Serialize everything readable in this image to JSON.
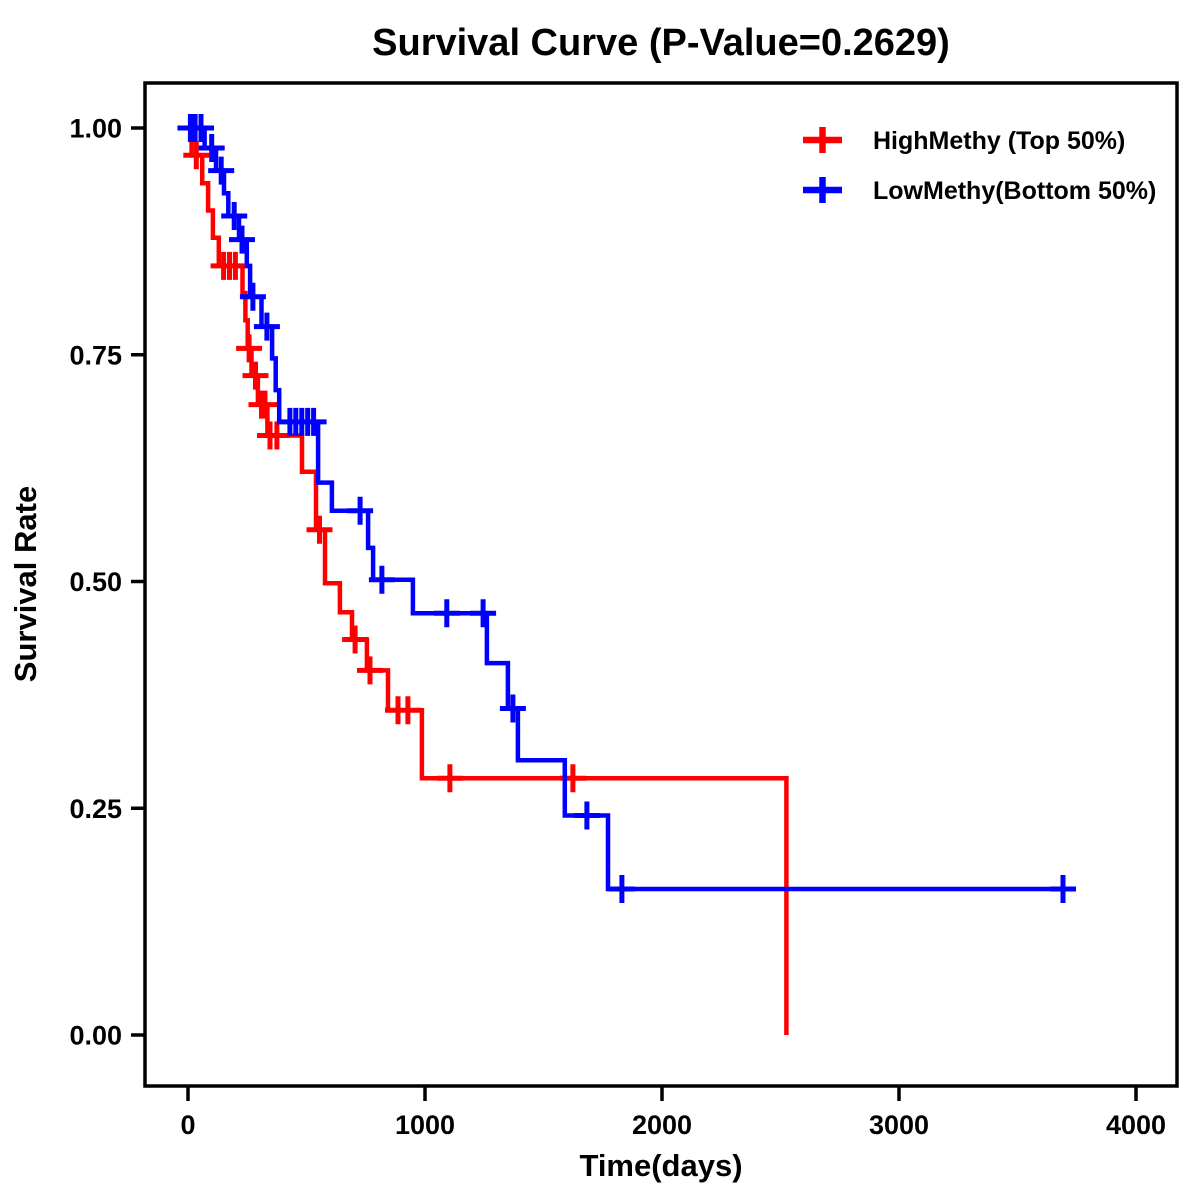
{
  "chart_data": {
    "type": "line",
    "subtype": "kaplan-meier-step-survival",
    "title": "Survival Curve (P-Value=0.2629)",
    "p_value_shown": "0.2629",
    "xlabel": "Time(days)",
    "ylabel": "Survival Rate",
    "x_ticks": [
      0,
      1000,
      2000,
      3000,
      4000
    ],
    "y_tick_values": [
      1.0,
      0.75,
      0.5,
      0.25,
      0.0
    ],
    "y_tick_labels": [
      "1.00",
      "0.75",
      "0.50",
      "0.25",
      "0.00"
    ],
    "xlim": [
      -180,
      4170
    ],
    "ylim": [
      -0.055,
      1.05
    ],
    "grid": false,
    "legend_position": "top-right-inside",
    "series": [
      {
        "key": "highmethy",
        "name": "HighMethy (Top 50%)",
        "color": "#FF0000",
        "marker": "plus-censor",
        "end_day": 2525,
        "steps": [
          [
            0,
            1.0
          ],
          [
            15,
            0.97
          ],
          [
            60,
            0.939
          ],
          [
            85,
            0.909
          ],
          [
            105,
            0.879
          ],
          [
            130,
            0.848
          ],
          [
            230,
            0.818
          ],
          [
            242,
            0.788
          ],
          [
            252,
            0.757
          ],
          [
            268,
            0.727
          ],
          [
            295,
            0.695
          ],
          [
            335,
            0.661
          ],
          [
            481,
            0.621
          ],
          [
            540,
            0.557
          ],
          [
            578,
            0.498
          ],
          [
            641,
            0.466
          ],
          [
            692,
            0.436
          ],
          [
            755,
            0.402
          ],
          [
            844,
            0.358
          ],
          [
            987,
            0.283
          ],
          [
            2525,
            0.0
          ]
        ],
        "censors": [
          [
            35,
            0.97
          ],
          [
            150,
            0.848
          ],
          [
            175,
            0.848
          ],
          [
            200,
            0.848
          ],
          [
            258,
            0.757
          ],
          [
            285,
            0.727
          ],
          [
            310,
            0.695
          ],
          [
            325,
            0.695
          ],
          [
            346,
            0.661
          ],
          [
            375,
            0.661
          ],
          [
            555,
            0.557
          ],
          [
            705,
            0.436
          ],
          [
            768,
            0.402
          ],
          [
            886,
            0.358
          ],
          [
            928,
            0.358
          ],
          [
            1105,
            0.283
          ],
          [
            1624,
            0.283
          ]
        ]
      },
      {
        "key": "lowmethy",
        "name": "LowMethy(Bottom 50%)",
        "color": "#0000FF",
        "marker": "plus-censor",
        "end_day": 3710,
        "steps": [
          [
            0,
            1.0
          ],
          [
            70,
            0.978
          ],
          [
            118,
            0.953
          ],
          [
            152,
            0.928
          ],
          [
            170,
            0.903
          ],
          [
            215,
            0.877
          ],
          [
            248,
            0.848
          ],
          [
            262,
            0.814
          ],
          [
            310,
            0.781
          ],
          [
            355,
            0.746
          ],
          [
            370,
            0.711
          ],
          [
            385,
            0.676
          ],
          [
            549,
            0.609
          ],
          [
            607,
            0.578
          ],
          [
            760,
            0.537
          ],
          [
            781,
            0.502
          ],
          [
            949,
            0.465
          ],
          [
            1261,
            0.41
          ],
          [
            1350,
            0.36
          ],
          [
            1392,
            0.303
          ],
          [
            1590,
            0.242
          ],
          [
            1772,
            0.161
          ]
        ],
        "censors": [
          [
            10,
            1.0
          ],
          [
            30,
            1.0
          ],
          [
            55,
            1.0
          ],
          [
            100,
            0.978
          ],
          [
            140,
            0.953
          ],
          [
            195,
            0.903
          ],
          [
            228,
            0.877
          ],
          [
            274,
            0.814
          ],
          [
            333,
            0.781
          ],
          [
            430,
            0.676
          ],
          [
            455,
            0.676
          ],
          [
            480,
            0.676
          ],
          [
            505,
            0.676
          ],
          [
            530,
            0.676
          ],
          [
            726,
            0.578
          ],
          [
            818,
            0.502
          ],
          [
            1092,
            0.465
          ],
          [
            1245,
            0.465
          ],
          [
            1371,
            0.36
          ],
          [
            1683,
            0.242
          ],
          [
            1831,
            0.161
          ],
          [
            3692,
            0.161
          ]
        ]
      }
    ]
  }
}
